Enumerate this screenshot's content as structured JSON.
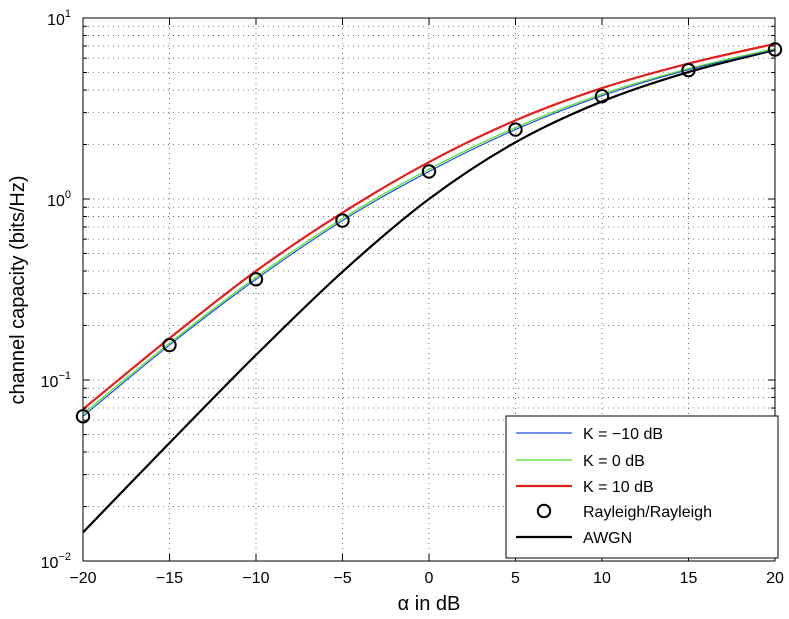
{
  "chart_data": {
    "type": "line",
    "xlabel": "α in dB",
    "ylabel": "channel capacity (bits/Hz)",
    "xlim": [
      -20,
      20
    ],
    "ylim": [
      0.01,
      10
    ],
    "yscale": "log",
    "grid": true,
    "legend_position": "bottom-right",
    "x_ticks": [
      -20,
      -15,
      -10,
      -5,
      0,
      5,
      10,
      15,
      20
    ],
    "x_tick_labels": [
      "−20",
      "−15",
      "−10",
      "−5",
      "0",
      "5",
      "10",
      "15",
      "20"
    ],
    "y_ticks": [
      {
        "value": 0.01,
        "base": "10",
        "exp": "−2"
      },
      {
        "value": 0.1,
        "base": "10",
        "exp": "−1"
      },
      {
        "value": 1,
        "base": "10",
        "exp": "0"
      },
      {
        "value": 10,
        "base": "10",
        "exp": "1"
      }
    ],
    "series": [
      {
        "name": "K = −10 dB",
        "color": "#1f4fd6",
        "style": "line",
        "x": [
          -20,
          -15,
          -10,
          -5,
          0,
          5,
          10,
          15,
          20
        ],
        "y": [
          0.063,
          0.156,
          0.36,
          0.76,
          1.42,
          2.42,
          3.72,
          5.18,
          6.72
        ]
      },
      {
        "name": "K = 0 dB",
        "color": "#4fdd2a",
        "style": "line",
        "x": [
          -20,
          -15,
          -10,
          -5,
          0,
          5,
          10,
          15,
          20
        ],
        "y": [
          0.065,
          0.16,
          0.37,
          0.78,
          1.46,
          2.48,
          3.8,
          5.25,
          6.78
        ]
      },
      {
        "name": "K = 10 dB",
        "color": "#e0201e",
        "style": "line",
        "x": [
          -20,
          -15,
          -10,
          -5,
          0,
          5,
          10,
          15,
          20
        ],
        "y": [
          0.069,
          0.17,
          0.4,
          0.84,
          1.6,
          2.72,
          4.1,
          5.6,
          7.2
        ]
      },
      {
        "name": "Rayleigh/Rayleigh",
        "color": "#000000",
        "style": "marker",
        "x": [
          -20,
          -15,
          -10,
          -5,
          0,
          5,
          10,
          15,
          20
        ],
        "y": [
          0.063,
          0.156,
          0.36,
          0.76,
          1.42,
          2.42,
          3.7,
          5.15,
          6.7
        ]
      },
      {
        "name": "AWGN",
        "color": "#000000",
        "style": "line",
        "x": [
          -20,
          -15,
          -10,
          -5,
          0,
          5,
          10,
          15,
          20
        ],
        "y": [
          0.0144,
          0.0449,
          0.1375,
          0.3963,
          1.0,
          2.0574,
          3.4594,
          5.0278,
          6.6582
        ]
      }
    ]
  }
}
